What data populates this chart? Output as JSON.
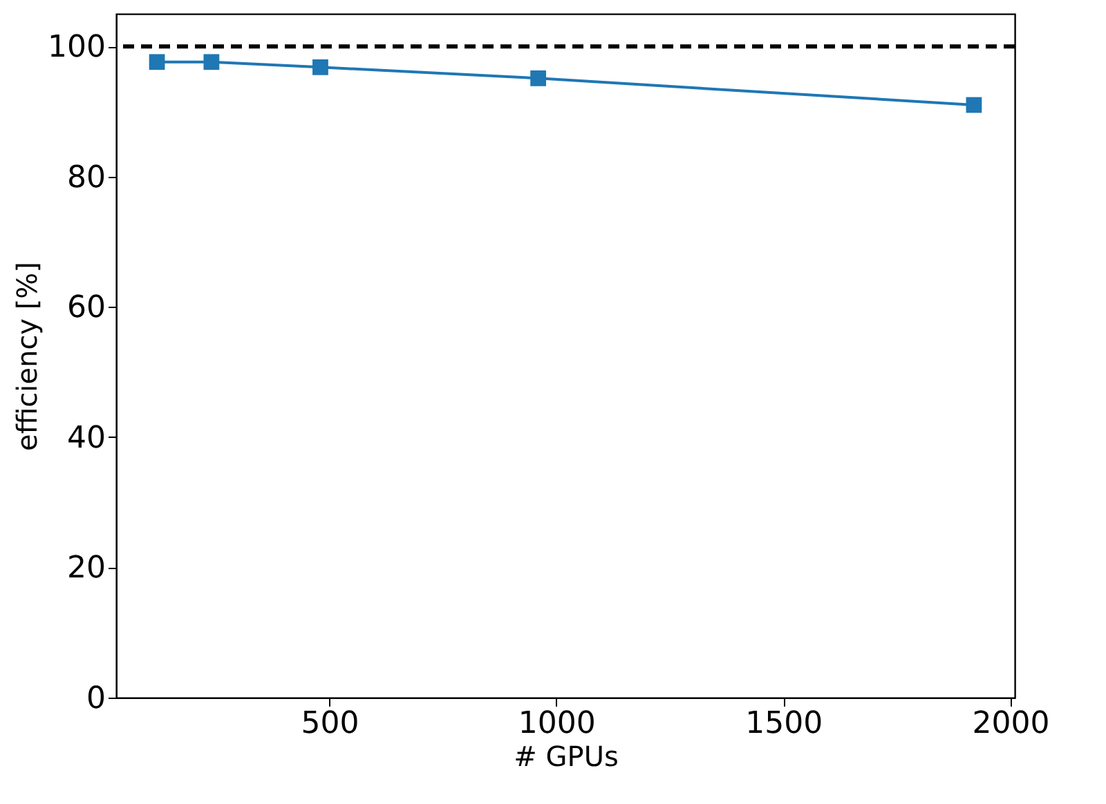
{
  "chart_data": {
    "type": "line",
    "xlabel": "# GPUs",
    "ylabel": "efficiency [%]",
    "x": [
      120,
      240,
      480,
      960,
      1920
    ],
    "series": [
      {
        "color": "#1f77b4",
        "values": [
          97.6,
          97.6,
          96.8,
          95.1,
          91.0
        ]
      }
    ],
    "xlim": [
      30,
      2010
    ],
    "xticks": [
      500,
      1000,
      1500,
      2000
    ],
    "ylim": [
      0,
      105
    ],
    "yticks": [
      0,
      20,
      40,
      60,
      80,
      100
    ],
    "ref_lines": [
      {
        "axis": "y",
        "value": 100,
        "color": "#000000",
        "line_style": "dashed"
      }
    ],
    "marker": "square",
    "line_style": "solid",
    "grid": false
  }
}
